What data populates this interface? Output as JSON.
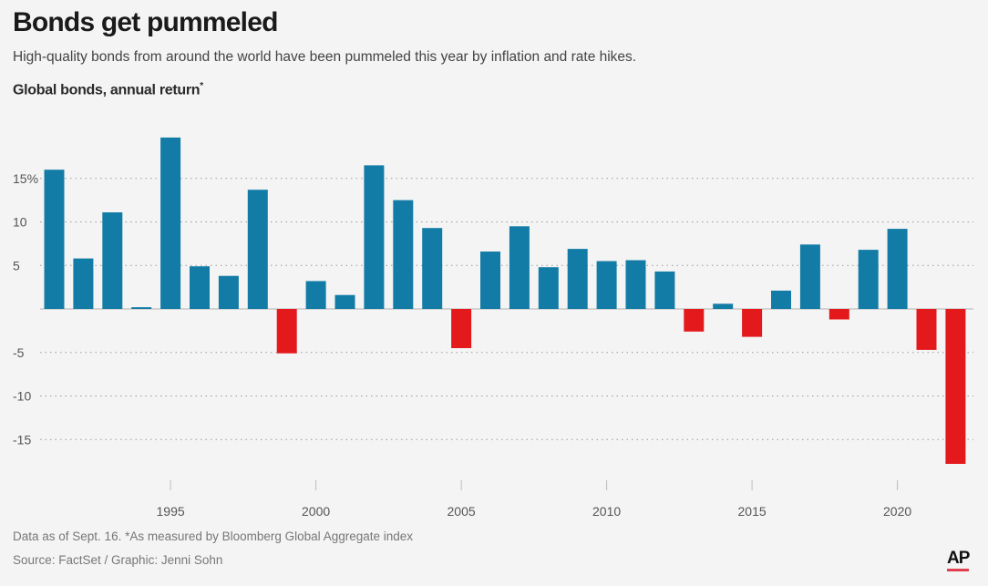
{
  "header": {
    "title": "Bonds get pummeled",
    "subtitle": "High-quality bonds from around the world have been pummeled this year by inflation and rate hikes."
  },
  "footer": {
    "note": "Data as of Sept. 16. *As measured by Bloomberg Global Aggregate index",
    "source": "Source: FactSet / Graphic: Jenni Sohn",
    "logo": "AP"
  },
  "chart_data": {
    "type": "bar",
    "title": "Bonds get pummeled",
    "ylabel": "Global bonds, annual return",
    "ylabel_mark": "*",
    "x": [
      1991,
      1992,
      1993,
      1994,
      1995,
      1996,
      1997,
      1998,
      1999,
      2000,
      2001,
      2002,
      2003,
      2004,
      2005,
      2006,
      2007,
      2008,
      2009,
      2010,
      2011,
      2012,
      2013,
      2014,
      2015,
      2016,
      2017,
      2018,
      2019,
      2020,
      2021,
      2022
    ],
    "values": [
      16.0,
      5.8,
      11.1,
      0.2,
      19.7,
      4.9,
      3.8,
      13.7,
      -5.1,
      3.2,
      1.6,
      16.5,
      12.5,
      9.3,
      -4.5,
      6.6,
      9.5,
      4.8,
      6.9,
      5.5,
      5.6,
      4.3,
      -2.6,
      0.6,
      -3.2,
      2.1,
      7.4,
      -1.2,
      6.8,
      9.2,
      -4.7,
      -17.8
    ],
    "ylim": [
      -19,
      21
    ],
    "yticks": [
      -15,
      -10,
      -5,
      0,
      5,
      10,
      15
    ],
    "ytick_labels": [
      "-15",
      "-10",
      "-5",
      "",
      "5",
      "10",
      "15%"
    ],
    "xticks": [
      1995,
      2000,
      2005,
      2010,
      2015,
      2020
    ],
    "xtick_labels": [
      "1995",
      "2000",
      "2005",
      "2010",
      "2015",
      "2020"
    ],
    "grid": true,
    "colors": {
      "positive": "#137ca6",
      "negative": "#e3191c",
      "grid": "#999999",
      "zero": "#c8c8c8"
    }
  }
}
